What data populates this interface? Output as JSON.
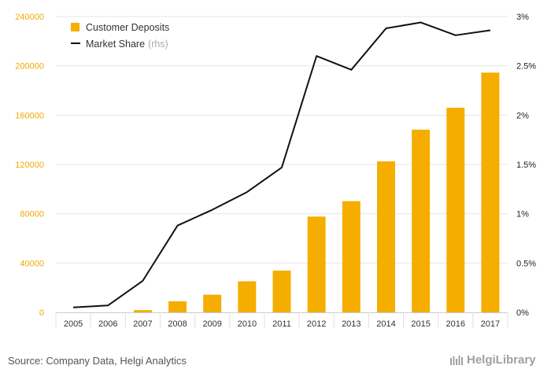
{
  "chart_data": {
    "type": "bar+line",
    "categories": [
      "2005",
      "2006",
      "2007",
      "2008",
      "2009",
      "2010",
      "2011",
      "2012",
      "2013",
      "2014",
      "2015",
      "2016",
      "2017"
    ],
    "series": [
      {
        "name": "Customer Deposits",
        "type": "bar",
        "axis": "left",
        "color": "#f5ae00",
        "values": [
          0,
          0,
          1800,
          9000,
          14300,
          25200,
          33900,
          77700,
          90200,
          122500,
          148200,
          166000,
          194500
        ]
      },
      {
        "name": "Market Share",
        "legend_suffix": "(rhs)",
        "type": "line",
        "axis": "right",
        "color": "#111111",
        "values": [
          0.05,
          0.07,
          0.32,
          0.88,
          1.04,
          1.22,
          1.47,
          2.6,
          2.46,
          2.88,
          2.94,
          2.81,
          2.86
        ]
      }
    ],
    "y_left": {
      "ylim": [
        0,
        240000
      ],
      "ticks": [
        "0",
        "40000",
        "80000",
        "120000",
        "160000",
        "200000",
        "240000"
      ]
    },
    "y_right": {
      "ylim": [
        0,
        3
      ],
      "ticks": [
        "0%",
        "0.5%",
        "1%",
        "1.5%",
        "2%",
        "2.5%",
        "3%"
      ]
    },
    "grid": true,
    "legend_position": "top-left"
  },
  "footer": {
    "source": "Source: Company Data, Helgi Analytics",
    "logo": "HelgiLibrary"
  }
}
